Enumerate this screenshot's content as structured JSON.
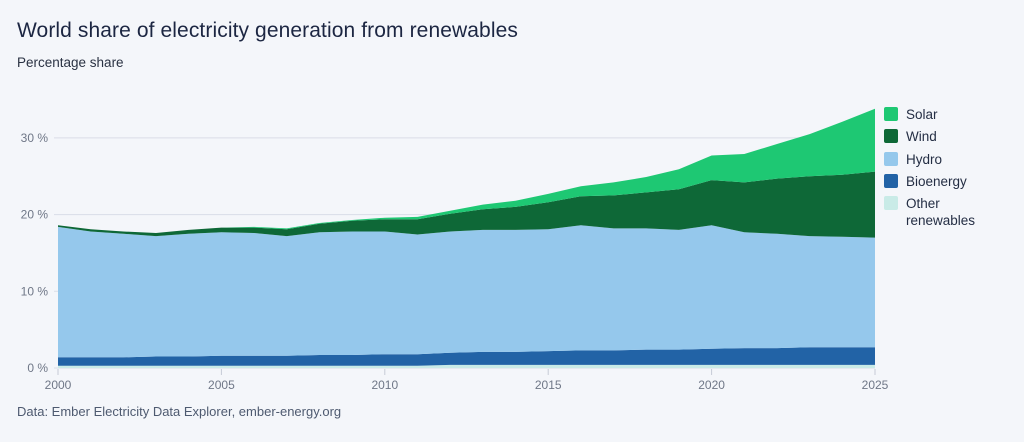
{
  "header": {
    "title": "World share of electricity generation from renewables",
    "subtitle": "Percentage share"
  },
  "footer": {
    "source": "Data: Ember Electricity Data Explorer, ember-energy.org"
  },
  "colors": {
    "background": "#f4f6fa",
    "grid": "#d9dde7",
    "tick": "#c6cbd6",
    "axis_text": "#6f7787",
    "solar": "#1ec873",
    "wind": "#0e6837",
    "hydro": "#95c8ec",
    "bioenergy": "#2263a6",
    "other_renewables": "#c9ebe7"
  },
  "chart_data": {
    "type": "area",
    "stacked": true,
    "title": "World share of electricity generation from renewables",
    "subtitle": "Percentage share",
    "xlabel": "",
    "ylabel": "Percentage share",
    "x": [
      2000,
      2001,
      2002,
      2003,
      2004,
      2005,
      2006,
      2007,
      2008,
      2009,
      2010,
      2011,
      2012,
      2013,
      2014,
      2015,
      2016,
      2017,
      2018,
      2019,
      2020,
      2021,
      2022,
      2023,
      2024,
      2025
    ],
    "series": [
      {
        "name": "Other renewables",
        "color": "#c9ebe7",
        "values": [
          0.3,
          0.3,
          0.3,
          0.3,
          0.3,
          0.3,
          0.3,
          0.3,
          0.3,
          0.3,
          0.3,
          0.3,
          0.4,
          0.4,
          0.4,
          0.4,
          0.4,
          0.4,
          0.4,
          0.4,
          0.4,
          0.4,
          0.4,
          0.4,
          0.4,
          0.4
        ]
      },
      {
        "name": "Bioenergy",
        "color": "#2263a6",
        "values": [
          1.1,
          1.1,
          1.1,
          1.2,
          1.2,
          1.3,
          1.3,
          1.3,
          1.4,
          1.4,
          1.5,
          1.5,
          1.6,
          1.7,
          1.7,
          1.8,
          1.9,
          1.9,
          2.0,
          2.0,
          2.1,
          2.2,
          2.2,
          2.3,
          2.3,
          2.3
        ]
      },
      {
        "name": "Hydro",
        "color": "#95c8ec",
        "values": [
          17.0,
          16.4,
          16.1,
          15.7,
          16.0,
          16.1,
          16.0,
          15.6,
          16.0,
          16.1,
          16.0,
          15.6,
          15.8,
          15.9,
          15.9,
          15.9,
          16.3,
          15.9,
          15.8,
          15.6,
          16.1,
          15.1,
          14.9,
          14.5,
          14.4,
          14.3
        ]
      },
      {
        "name": "Wind",
        "color": "#0e6837",
        "values": [
          0.2,
          0.3,
          0.3,
          0.4,
          0.5,
          0.6,
          0.7,
          0.9,
          1.1,
          1.4,
          1.6,
          2.0,
          2.3,
          2.7,
          3.0,
          3.5,
          3.8,
          4.3,
          4.7,
          5.3,
          5.9,
          6.5,
          7.2,
          7.8,
          8.1,
          8.6
        ]
      },
      {
        "name": "Solar",
        "color": "#1ec873",
        "values": [
          0.0,
          0.0,
          0.0,
          0.0,
          0.0,
          0.0,
          0.1,
          0.1,
          0.1,
          0.1,
          0.2,
          0.3,
          0.4,
          0.6,
          0.8,
          1.1,
          1.3,
          1.7,
          2.0,
          2.6,
          3.2,
          3.7,
          4.5,
          5.5,
          6.9,
          8.2
        ]
      }
    ],
    "legend": [
      {
        "label": "Solar",
        "color": "#1ec873",
        "key": "solar"
      },
      {
        "label": "Wind",
        "color": "#0e6837",
        "key": "wind"
      },
      {
        "label": "Hydro",
        "color": "#95c8ec",
        "key": "hydro"
      },
      {
        "label": "Bioenergy",
        "color": "#2263a6",
        "key": "bioenergy"
      },
      {
        "label": "Other renewables",
        "color": "#c9ebe7",
        "key": "other-renewables"
      }
    ],
    "legend_position": "right",
    "grid": "horizontal",
    "xlim": [
      2000,
      2025
    ],
    "ylim": [
      0,
      35
    ],
    "yticks": [
      0,
      10,
      20,
      30
    ],
    "ytick_labels": [
      "0 %",
      "10 %",
      "20 %",
      "30 %"
    ],
    "xticks": [
      2000,
      2005,
      2010,
      2015,
      2020,
      2025
    ],
    "xtick_labels": [
      "2000",
      "2005",
      "2010",
      "2015",
      "2020",
      "2025"
    ]
  }
}
